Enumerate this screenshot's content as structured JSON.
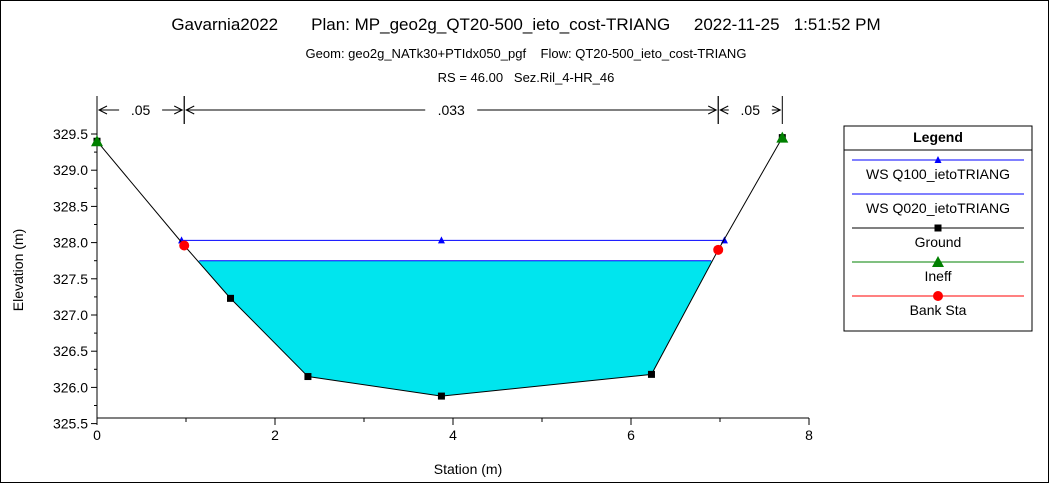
{
  "header": {
    "line1": "Gavarnia2022       Plan: MP_geo2g_QT20-500_ieto_cost-TRIANG     2022-11-25   1:51:52 PM",
    "line2": "Geom: geo2g_NATk30+PTIdx050_pgf    Flow: QT20-500_ieto_cost-TRIANG",
    "line3": "RS = 46.00   Sez.Ril_4-HR_46"
  },
  "chart_data": {
    "type": "line",
    "xlabel": "Station (m)",
    "ylabel": "Elevation (m)",
    "xlim": [
      0,
      8
    ],
    "ylim": [
      325.5,
      329.8
    ],
    "xticks": [
      "0",
      "2",
      "4",
      "6",
      "8"
    ],
    "yticks": [
      "325.5",
      "326.0",
      "326.5",
      "327.0",
      "327.5",
      "328.0",
      "328.5",
      "329.0",
      "329.5"
    ],
    "manning": [
      {
        "label": ".05",
        "from": 0,
        "to": 0.98
      },
      {
        "label": ".033",
        "from": 0.98,
        "to": 6.98
      },
      {
        "label": ".05",
        "from": 6.98,
        "to": 7.7
      }
    ],
    "series": [
      {
        "name": "WS Q100_ietoTRIANG",
        "color": "#0000ff",
        "marker": "triangle-small",
        "x": [
          0.95,
          3.87,
          7.05
        ],
        "y": [
          328.03,
          328.03,
          328.03
        ]
      },
      {
        "name": "WS Q020_ietoTRIANG",
        "color": "#0000ff",
        "marker": "none",
        "x": [
          1.15,
          6.9
        ],
        "y": [
          327.75,
          327.75
        ]
      },
      {
        "name": "Ground",
        "color": "#000000",
        "marker": "square",
        "x": [
          0,
          0.98,
          1.5,
          2.37,
          3.87,
          6.23,
          6.98,
          7.7
        ],
        "y": [
          329.4,
          327.96,
          327.23,
          326.15,
          325.88,
          326.18,
          327.9,
          329.45
        ]
      },
      {
        "name": "Ineff",
        "color": "#008000",
        "marker": "triangle",
        "x": [
          0,
          7.7
        ],
        "y": [
          329.4,
          329.45
        ]
      },
      {
        "name": "Bank Sta",
        "color": "#ff0000",
        "marker": "circle",
        "x": [
          0.98,
          6.98
        ],
        "y": [
          327.96,
          327.9
        ]
      }
    ],
    "fill": {
      "color": "#00e5ee",
      "series": "WS Q020_ietoTRIANG"
    },
    "legend": {
      "title": "Legend",
      "placement": "right"
    }
  }
}
